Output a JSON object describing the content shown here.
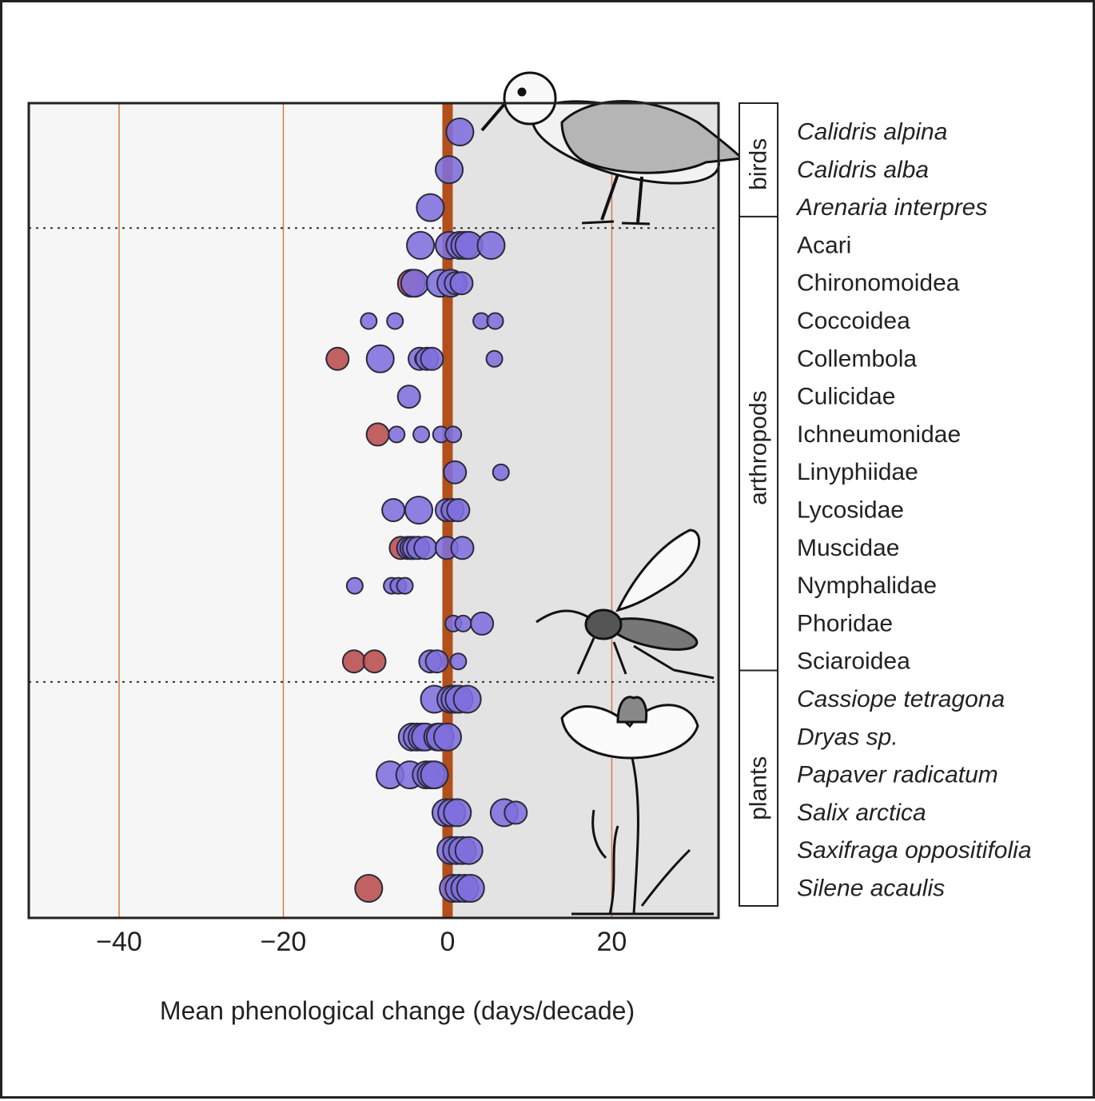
{
  "chart_data": {
    "type": "scatter",
    "xlabel": "Mean phenological change (days/decade)",
    "xlim": [
      -51,
      33
    ],
    "xticks": [
      -40,
      -20,
      0,
      20
    ],
    "tick_labels": [
      "−40",
      "−20",
      "0",
      "20"
    ],
    "grid": "vertical lines at -40, -20, 0, 20",
    "shading": "region x > 0 shaded grey",
    "colors": {
      "advance_point": "#8070dd",
      "delay_point": "#bb4c4c",
      "zero_line": "#b34f1a",
      "grid_line": "#d9794a",
      "shade": "#e3e3e3",
      "plot_bg": "#f6f6f6"
    },
    "groups": [
      {
        "name": "birds",
        "rows": [
          0,
          2
        ]
      },
      {
        "name": "arthropods",
        "rows": [
          3,
          14
        ]
      },
      {
        "name": "plants",
        "rows": [
          15,
          20
        ]
      }
    ],
    "taxa": [
      {
        "label": "Calidris alpina",
        "italic": true,
        "points": [
          {
            "x": 1.5,
            "size": "l",
            "color": "blue"
          }
        ]
      },
      {
        "label": "Calidris alba",
        "italic": true,
        "points": [
          {
            "x": 0.2,
            "size": "l",
            "color": "blue"
          }
        ]
      },
      {
        "label": "Arenaria interpres",
        "italic": true,
        "points": [
          {
            "x": -2.1,
            "size": "l",
            "color": "blue"
          }
        ]
      },
      {
        "label": "Acari",
        "italic": false,
        "points": [
          {
            "x": -3.3,
            "size": "l",
            "color": "blue"
          },
          {
            "x": 0.2,
            "size": "l",
            "color": "blue"
          },
          {
            "x": 1.5,
            "size": "l",
            "color": "blue"
          },
          {
            "x": 2.1,
            "size": "l",
            "color": "blue"
          },
          {
            "x": 2.6,
            "size": "l",
            "color": "blue"
          },
          {
            "x": 5.3,
            "size": "l",
            "color": "blue"
          }
        ]
      },
      {
        "label": "Chironomoidea",
        "italic": false,
        "points": [
          {
            "x": -4.4,
            "size": "l",
            "color": "red"
          },
          {
            "x": -4.0,
            "size": "l",
            "color": "blue"
          },
          {
            "x": -0.9,
            "size": "l",
            "color": "blue"
          },
          {
            "x": 0.4,
            "size": "l",
            "color": "blue"
          },
          {
            "x": 1.0,
            "size": "m",
            "color": "blue"
          },
          {
            "x": 1.7,
            "size": "m",
            "color": "blue"
          }
        ]
      },
      {
        "label": "Coccoidea",
        "italic": false,
        "points": [
          {
            "x": -9.6,
            "size": "s",
            "color": "blue"
          },
          {
            "x": -6.4,
            "size": "s",
            "color": "blue"
          },
          {
            "x": 4.1,
            "size": "s",
            "color": "blue"
          },
          {
            "x": 5.8,
            "size": "s",
            "color": "blue"
          }
        ]
      },
      {
        "label": "Collembola",
        "italic": false,
        "points": [
          {
            "x": -13.4,
            "size": "m",
            "color": "red"
          },
          {
            "x": -8.2,
            "size": "l",
            "color": "blue"
          },
          {
            "x": -3.4,
            "size": "m",
            "color": "blue"
          },
          {
            "x": -3.0,
            "size": "s",
            "color": "blue"
          },
          {
            "x": -2.5,
            "size": "m",
            "color": "blue"
          },
          {
            "x": -1.9,
            "size": "m",
            "color": "blue"
          },
          {
            "x": 5.7,
            "size": "s",
            "color": "blue"
          }
        ]
      },
      {
        "label": "Culicidae",
        "italic": false,
        "points": [
          {
            "x": -4.7,
            "size": "m",
            "color": "blue"
          }
        ]
      },
      {
        "label": "Ichneumonidae",
        "italic": false,
        "points": [
          {
            "x": -8.5,
            "size": "m",
            "color": "red"
          },
          {
            "x": -6.2,
            "size": "s",
            "color": "blue"
          },
          {
            "x": -3.2,
            "size": "s",
            "color": "blue"
          },
          {
            "x": -0.8,
            "size": "s",
            "color": "blue"
          },
          {
            "x": 0.7,
            "size": "s",
            "color": "blue"
          }
        ]
      },
      {
        "label": "Linyphiidae",
        "italic": false,
        "points": [
          {
            "x": 0.9,
            "size": "m",
            "color": "blue"
          },
          {
            "x": 6.5,
            "size": "s",
            "color": "blue"
          }
        ]
      },
      {
        "label": "Lycosidae",
        "italic": false,
        "points": [
          {
            "x": -6.6,
            "size": "m",
            "color": "blue"
          },
          {
            "x": -3.5,
            "size": "l",
            "color": "blue"
          },
          {
            "x": -0.1,
            "size": "m",
            "color": "blue"
          },
          {
            "x": 0.6,
            "size": "m",
            "color": "blue"
          },
          {
            "x": 1.3,
            "size": "m",
            "color": "blue"
          }
        ]
      },
      {
        "label": "Muscidae",
        "italic": false,
        "points": [
          {
            "x": -5.7,
            "size": "m",
            "color": "red"
          },
          {
            "x": -4.8,
            "size": "m",
            "color": "blue"
          },
          {
            "x": -4.4,
            "size": "m",
            "color": "blue"
          },
          {
            "x": -4.1,
            "size": "m",
            "color": "blue"
          },
          {
            "x": -3.6,
            "size": "m",
            "color": "blue"
          },
          {
            "x": -2.7,
            "size": "m",
            "color": "blue"
          },
          {
            "x": -0.1,
            "size": "m",
            "color": "blue"
          },
          {
            "x": 1.8,
            "size": "m",
            "color": "blue"
          }
        ]
      },
      {
        "label": "Nymphalidae",
        "italic": false,
        "points": [
          {
            "x": -11.3,
            "size": "s",
            "color": "blue"
          },
          {
            "x": -6.8,
            "size": "s",
            "color": "blue"
          },
          {
            "x": -6.0,
            "size": "s",
            "color": "blue"
          },
          {
            "x": -5.2,
            "size": "s",
            "color": "blue"
          }
        ]
      },
      {
        "label": "Phoridae",
        "italic": false,
        "points": [
          {
            "x": 0.7,
            "size": "s",
            "color": "blue"
          },
          {
            "x": 1.9,
            "size": "s",
            "color": "blue"
          },
          {
            "x": 4.2,
            "size": "m",
            "color": "blue"
          }
        ]
      },
      {
        "label": "Sciaroidea",
        "italic": false,
        "points": [
          {
            "x": -11.4,
            "size": "m",
            "color": "red"
          },
          {
            "x": -8.9,
            "size": "m",
            "color": "red"
          },
          {
            "x": -2.1,
            "size": "m",
            "color": "blue"
          },
          {
            "x": -1.3,
            "size": "m",
            "color": "blue"
          },
          {
            "x": 1.3,
            "size": "s",
            "color": "blue"
          }
        ]
      },
      {
        "label": "Cassiope tetragona",
        "italic": true,
        "points": [
          {
            "x": -1.6,
            "size": "l",
            "color": "blue"
          },
          {
            "x": 0.4,
            "size": "l",
            "color": "blue"
          },
          {
            "x": 0.9,
            "size": "l",
            "color": "blue"
          },
          {
            "x": 1.4,
            "size": "l",
            "color": "blue"
          },
          {
            "x": 2.4,
            "size": "l",
            "color": "blue"
          }
        ]
      },
      {
        "label": "Dryas sp.",
        "italic": true,
        "points": [
          {
            "x": -4.3,
            "size": "l",
            "color": "blue"
          },
          {
            "x": -3.7,
            "size": "l",
            "color": "blue"
          },
          {
            "x": -3.1,
            "size": "l",
            "color": "blue"
          },
          {
            "x": -2.7,
            "size": "l",
            "color": "blue"
          },
          {
            "x": -1.2,
            "size": "l",
            "color": "blue"
          },
          {
            "x": -0.9,
            "size": "l",
            "color": "blue"
          },
          {
            "x": 0.0,
            "size": "l",
            "color": "blue"
          }
        ]
      },
      {
        "label": "Papaver radicatum",
        "italic": true,
        "points": [
          {
            "x": -7.0,
            "size": "l",
            "color": "blue"
          },
          {
            "x": -4.6,
            "size": "l",
            "color": "blue"
          },
          {
            "x": -2.6,
            "size": "l",
            "color": "blue"
          },
          {
            "x": -2.0,
            "size": "l",
            "color": "blue"
          },
          {
            "x": -1.6,
            "size": "l",
            "color": "blue"
          }
        ]
      },
      {
        "label": "Salix arctica",
        "italic": true,
        "points": [
          {
            "x": -0.2,
            "size": "l",
            "color": "blue"
          },
          {
            "x": 0.5,
            "size": "l",
            "color": "blue"
          },
          {
            "x": 1.2,
            "size": "l",
            "color": "blue"
          },
          {
            "x": 6.9,
            "size": "l",
            "color": "blue"
          },
          {
            "x": 8.3,
            "size": "m",
            "color": "blue"
          }
        ]
      },
      {
        "label": "Saxifraga oppositifolia",
        "italic": true,
        "points": [
          {
            "x": 0.4,
            "size": "l",
            "color": "blue"
          },
          {
            "x": 1.1,
            "size": "l",
            "color": "blue"
          },
          {
            "x": 1.8,
            "size": "l",
            "color": "blue"
          },
          {
            "x": 2.6,
            "size": "l",
            "color": "blue"
          }
        ]
      },
      {
        "label": "Silene acaulis",
        "italic": true,
        "points": [
          {
            "x": -9.6,
            "size": "l",
            "color": "red"
          },
          {
            "x": 0.7,
            "size": "l",
            "color": "blue"
          },
          {
            "x": 1.4,
            "size": "l",
            "color": "blue"
          },
          {
            "x": 2.1,
            "size": "l",
            "color": "blue"
          },
          {
            "x": 2.8,
            "size": "l",
            "color": "blue"
          }
        ]
      }
    ]
  }
}
